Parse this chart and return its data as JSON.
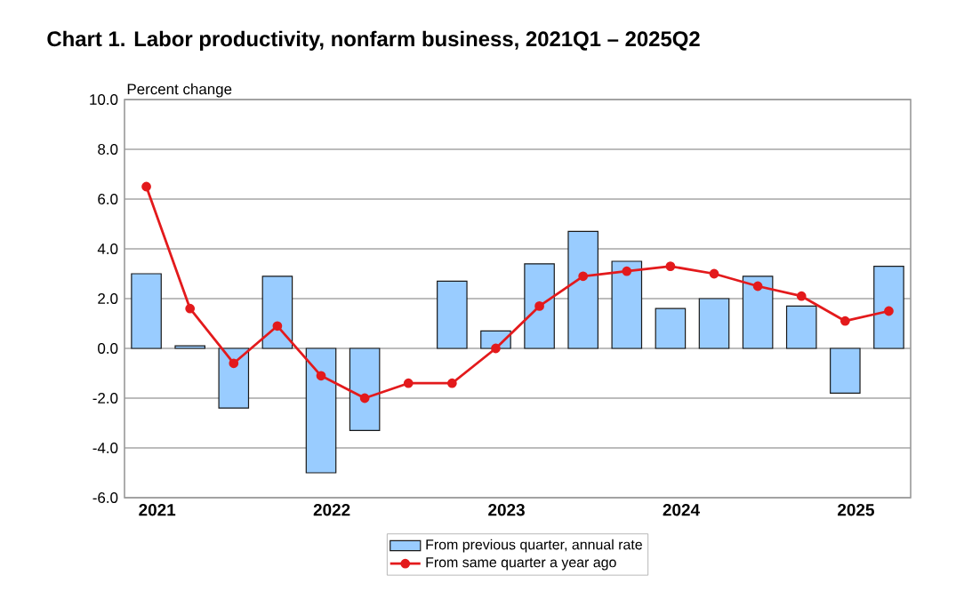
{
  "chart_data": {
    "type": "bar",
    "title": "Chart  1. Labor productivity, nonfarm business, 2021Q1 – 2025Q2",
    "ylabel": "Percent change",
    "categories": [
      "2021",
      null,
      null,
      null,
      "2022",
      null,
      null,
      null,
      "2023",
      null,
      null,
      null,
      "2024",
      null,
      null,
      null,
      "2025",
      null
    ],
    "series": [
      {
        "name": "From previous quarter, annual rate",
        "color": "#99ccff",
        "values": [
          3.0,
          0.1,
          -2.4,
          2.9,
          -5.0,
          -3.3,
          null,
          2.7,
          0.7,
          3.4,
          4.7,
          3.5,
          1.6,
          2.0,
          2.9,
          1.7,
          -1.8,
          3.3
        ]
      },
      {
        "name": "From same quarter a year ago",
        "type": "line",
        "color": "#e31a1c",
        "marker": "circle",
        "values": [
          6.5,
          1.6,
          -0.6,
          0.9,
          -1.1,
          -2.0,
          -1.4,
          -1.4,
          0.0,
          1.7,
          2.9,
          3.1,
          3.3,
          3.0,
          2.5,
          2.1,
          1.1,
          1.5
        ]
      }
    ],
    "ylim": [
      -6,
      10
    ],
    "yticks": [
      {
        "value": -6,
        "label": "-6.0"
      },
      {
        "value": -4,
        "label": "-4.0"
      },
      {
        "value": -2,
        "label": "-2.0"
      },
      {
        "value": 0,
        "label": "0.0"
      },
      {
        "value": 2,
        "label": "2.0"
      },
      {
        "value": 4,
        "label": "4.0"
      },
      {
        "value": 6,
        "label": "6.0"
      },
      {
        "value": 8,
        "label": "8.0"
      },
      {
        "value": 10,
        "label": "10.0"
      }
    ],
    "grid": "y",
    "legend": "bottom"
  }
}
